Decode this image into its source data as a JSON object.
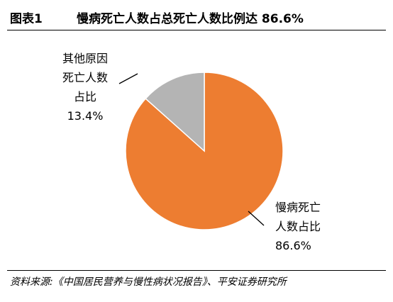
{
  "header": {
    "figure_label": "图表1",
    "title": "慢病死亡人数占总死亡人数比例达 86.6%"
  },
  "chart_data": {
    "type": "pie",
    "title": "慢病死亡人数占总死亡人数比例达 86.6%",
    "slices": [
      {
        "label_lines": [
          "慢病死亡",
          "人数占比"
        ],
        "label": "慢病死亡人数占比",
        "value": 86.6,
        "value_text": "86.6%",
        "color": "#ED7D31"
      },
      {
        "label_lines": [
          "其他原因",
          "死亡人数",
          "占比"
        ],
        "label": "其他原因死亡人数占比",
        "value": 13.4,
        "value_text": "13.4%",
        "color": "#B4B4B4"
      }
    ],
    "start_angle_deg": 0,
    "direction": "clockwise",
    "legend": "none"
  },
  "footer": {
    "source": "资料来源:《中国居民营养与慢性病状况报告》、平安证券研究所"
  },
  "colors": {
    "chronic": "#ED7D31",
    "other": "#B4B4B4",
    "text": "#000000"
  }
}
